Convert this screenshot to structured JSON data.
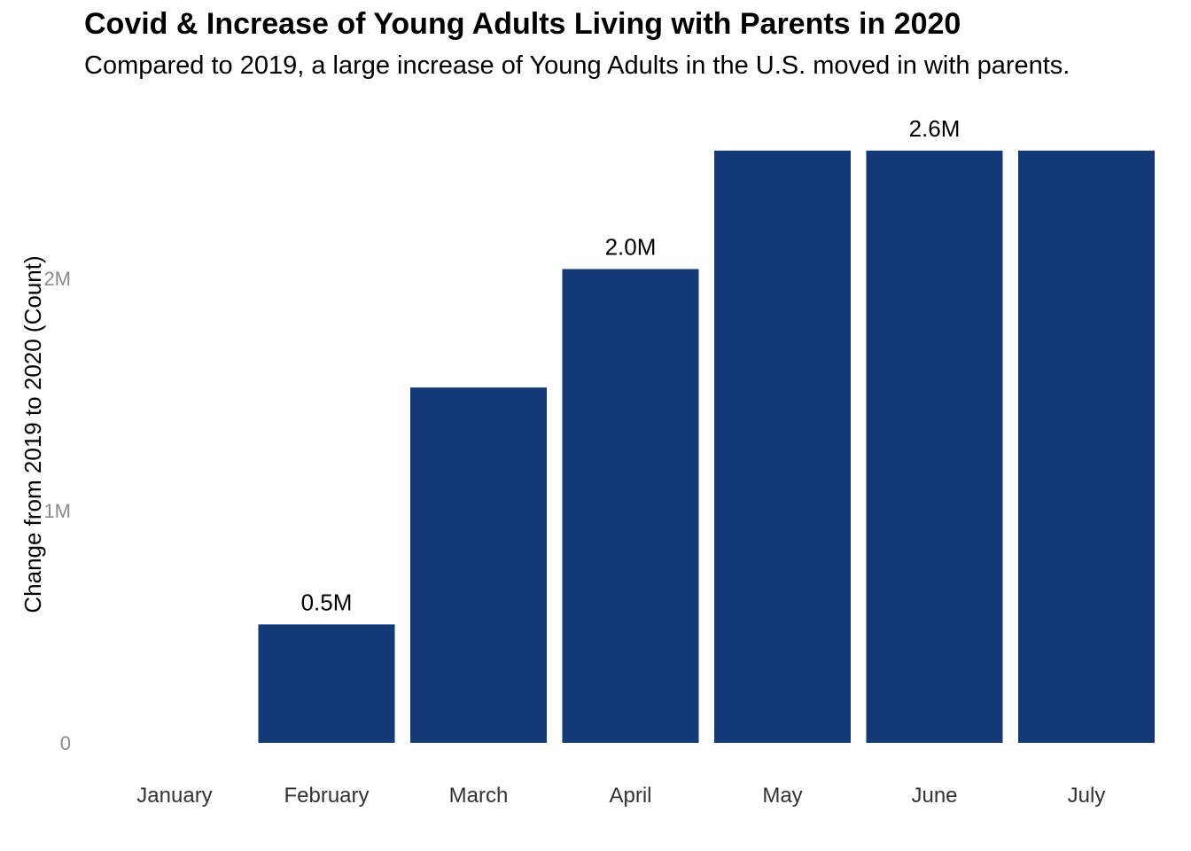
{
  "chart_data": {
    "type": "bar",
    "title": "Covid & Increase of Young Adults Living with Parents in 2020",
    "subtitle": "Compared to 2019, a large increase of Young Adults in the U.S. moved in with parents.",
    "xlabel": "",
    "ylabel": "Change from 2019 to 2020 (Count)",
    "categories": [
      "January",
      "February",
      "March",
      "April",
      "May",
      "June",
      "July"
    ],
    "values": [
      0,
      0.51,
      1.53,
      2.04,
      2.55,
      2.55,
      2.55
    ],
    "data_labels": [
      "",
      "0.5M",
      "",
      "2.0M",
      "",
      "2.6M",
      ""
    ],
    "ylim": [
      0,
      2.7
    ],
    "yticks": [
      0,
      1,
      2
    ],
    "ytick_labels": [
      "0",
      "1M",
      "2M"
    ],
    "bar_color": "#133a76",
    "grid": false,
    "legend": "none"
  }
}
